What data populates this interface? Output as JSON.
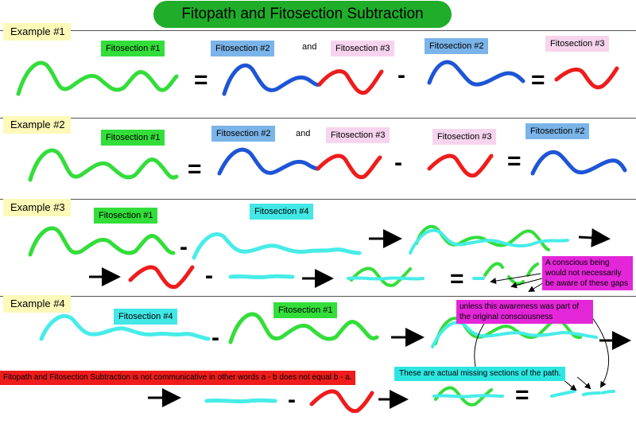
{
  "title": "Fitopath and Fitosection Subtraction",
  "examples": {
    "ex1": {
      "label": "Example #1",
      "fitosection1": "Fitosection #1",
      "fitosection2a": "Fitosection #2",
      "and": "and",
      "fitosection3a": "Fitosection #3",
      "fitosection2b": "Fitosection #2",
      "fitosection3b": "Fitosection #3"
    },
    "ex2": {
      "label": "Example #2",
      "fitosection1": "Fitosection #1",
      "fitosection2a": "Fitosection #2",
      "and": "and",
      "fitosection3a": "Fitosection #3",
      "fitosection3b": "Fitosection #3",
      "fitosection2b": "Fitosection #2"
    },
    "ex3": {
      "label": "Example #3",
      "fitosection1": "Fitosection #1",
      "fitosection4": "Fitosection #4"
    },
    "ex4": {
      "label": "Example #4",
      "fitosection4": "Fitosection #4",
      "fitosection1": "Fitosection #1"
    }
  },
  "operators": {
    "equals": "=",
    "minus": "-"
  },
  "notes": {
    "conscious_being": "A conscious being would not necessarily be aware of these gaps",
    "unless_awareness": "unless this awareness was part of the original consciousness",
    "not_communicative": "Fitopath and Fitosection Subtraction is not communicative in other words a - b does not equal b - a.",
    "missing_sections": "These are actual missing sections of the path."
  },
  "colors": {
    "green_path": "#33dd3a",
    "blue_path": "#1e55d6",
    "red_path": "#ee1c1c",
    "cyan_path": "#47ece8",
    "title_bg": "#1fad2a"
  }
}
